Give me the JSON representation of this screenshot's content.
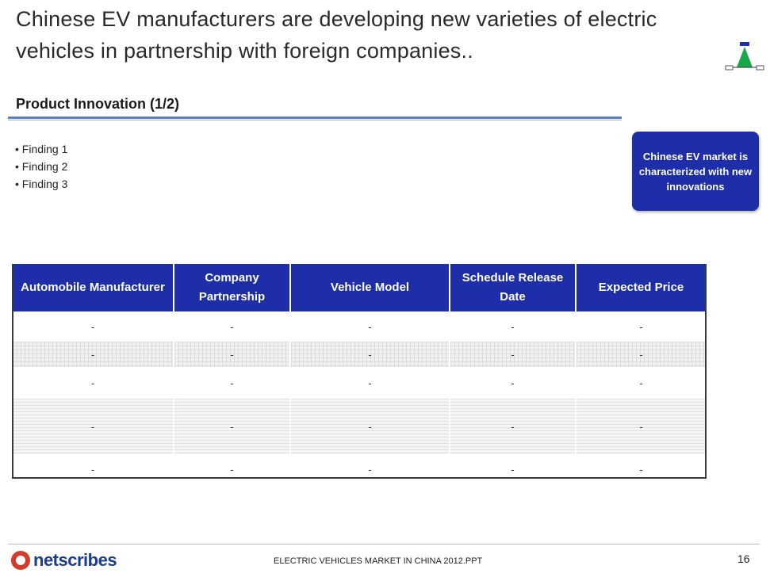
{
  "slide": {
    "title": "Chinese EV manufacturers are developing new varieties of electric vehicles in partnership with foreign companies..",
    "subtitle": "Product Innovation (1/2)",
    "findings": [
      "• Finding 1",
      "• Finding 2",
      "• Finding 3"
    ],
    "callout": "Chinese EV market is characterized with new innovations"
  },
  "table": {
    "headers": [
      "Automobile Manufacturer",
      "Company Partnership",
      "Vehicle Model",
      "Schedule Release Date",
      "Expected Price"
    ],
    "rows": [
      [
        "-",
        "-",
        "-",
        "-",
        "-"
      ],
      [
        "-",
        "-",
        "-",
        "-",
        "-"
      ],
      [
        "-",
        "-",
        "-",
        "-",
        "-"
      ],
      [
        "-",
        "-",
        "-",
        "-",
        "-"
      ],
      [
        "-",
        "-",
        "-",
        "-",
        "-"
      ]
    ]
  },
  "footer": {
    "brand": "netscribes",
    "document": "ELECTRIC VEHICLES MARKET IN CHINA 2012.PPT",
    "page": "16"
  },
  "colors": {
    "header_blue": "#1e2ea8",
    "rule_blue": "#5b7fbf",
    "logo_green": "#1aa84a",
    "brand_red": "#d23c2a"
  }
}
